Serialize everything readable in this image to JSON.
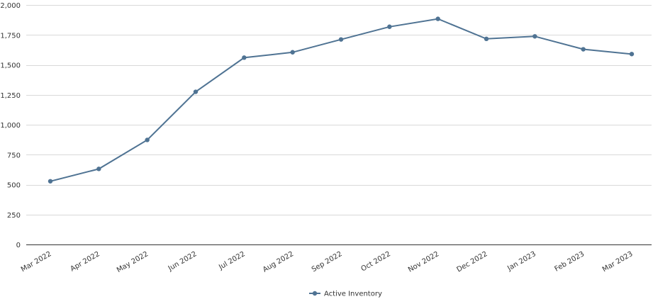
{
  "chart_data": {
    "type": "line",
    "title": "",
    "xlabel": "",
    "ylabel": "",
    "categories": [
      "Mar 2022",
      "Apr 2022",
      "May 2022",
      "Jun 2022",
      "Jul 2022",
      "Aug 2022",
      "Sep 2022",
      "Oct 2022",
      "Nov 2022",
      "Dec 2022",
      "Jan 2023",
      "Feb 2023",
      "Mar 2023"
    ],
    "series": [
      {
        "name": "Active Inventory",
        "color": "#4f7393",
        "values": [
          528,
          631,
          873,
          1275,
          1560,
          1605,
          1712,
          1818,
          1884,
          1717,
          1738,
          1630,
          1590
        ]
      }
    ],
    "ylim": [
      0,
      2000
    ],
    "yticks": [
      0,
      250,
      500,
      750,
      1000,
      1250,
      1500,
      1750,
      2000
    ],
    "ytick_labels": [
      "0",
      "250",
      "500",
      "750",
      "1,000",
      "1,250",
      "1,500",
      "1,750",
      "2,000"
    ],
    "grid": true,
    "legend_position": "bottom-center"
  }
}
